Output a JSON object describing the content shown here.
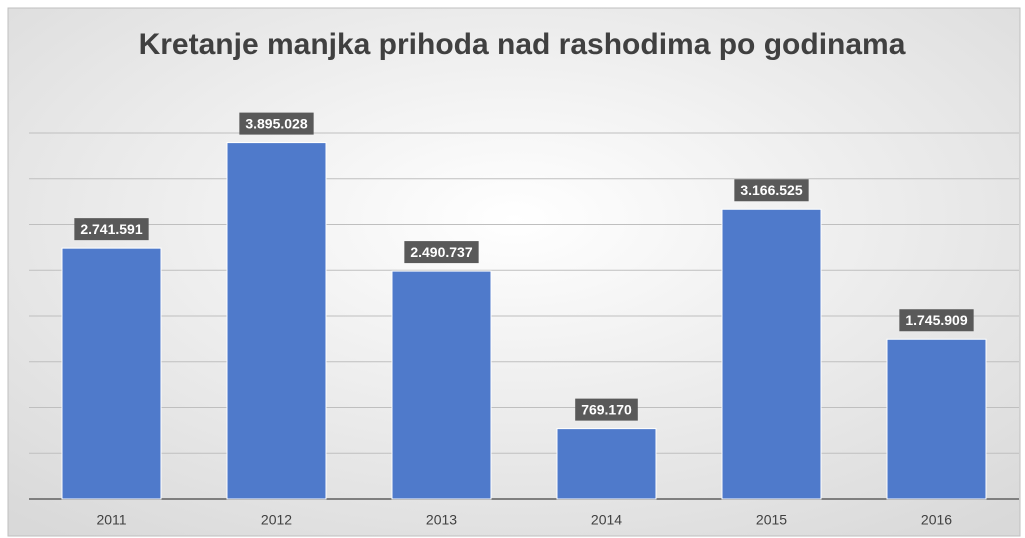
{
  "chart_data": {
    "type": "bar",
    "title": "Kretanje manjka prihoda nad rashodima po godinama",
    "categories": [
      "2011",
      "2012",
      "2013",
      "2014",
      "2015",
      "2016"
    ],
    "values": [
      2741591,
      3895028,
      2490737,
      769170,
      3166525,
      1745909
    ],
    "value_labels": [
      "2.741.591",
      "3.895.028",
      "2.490.737",
      "769.170",
      "3.166.525",
      "1.745.909"
    ],
    "color": "#4f7acb",
    "ylim": [
      0,
      4000000
    ],
    "yticks": [
      0,
      500000,
      1000000,
      1500000,
      2000000,
      2500000,
      3000000,
      3500000,
      4000000
    ],
    "grid": true
  }
}
